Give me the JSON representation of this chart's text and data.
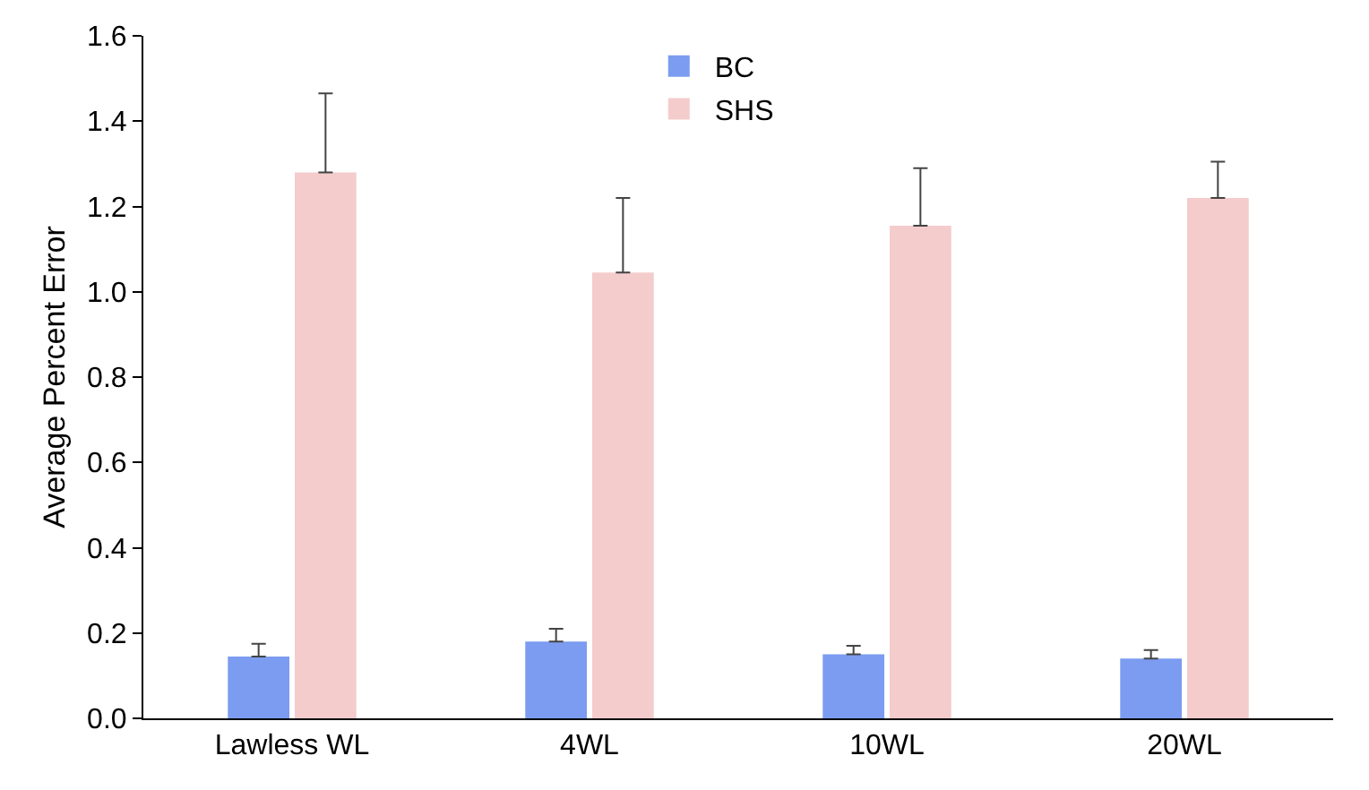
{
  "chart_data": {
    "type": "bar",
    "ylabel": "Average Percent Error",
    "categories": [
      "Lawless WL",
      "4WL",
      "10WL",
      "20WL"
    ],
    "series": [
      {
        "name": "BC",
        "color": "#7b9cf0",
        "values": [
          0.145,
          0.18,
          0.15,
          0.14
        ],
        "errors": [
          [
            0.145,
            0.175
          ],
          [
            0.18,
            0.21
          ],
          [
            0.15,
            0.17
          ],
          [
            0.14,
            0.16
          ]
        ]
      },
      {
        "name": "SHS",
        "color": "#f4cccc",
        "values": [
          1.28,
          1.045,
          1.155,
          1.22
        ],
        "errors": [
          [
            1.28,
            1.465
          ],
          [
            1.045,
            1.22
          ],
          [
            1.155,
            1.29
          ],
          [
            1.22,
            1.305
          ]
        ]
      }
    ],
    "ylim": [
      0,
      1.6
    ],
    "yticks": [
      {
        "value": 0,
        "label": "0.0"
      },
      0.2,
      0.4,
      0.6,
      0.8,
      {
        "value": 1,
        "label": "1.0"
      },
      1.2,
      1.4,
      1.6
    ],
    "grid": false,
    "legend": "top"
  }
}
